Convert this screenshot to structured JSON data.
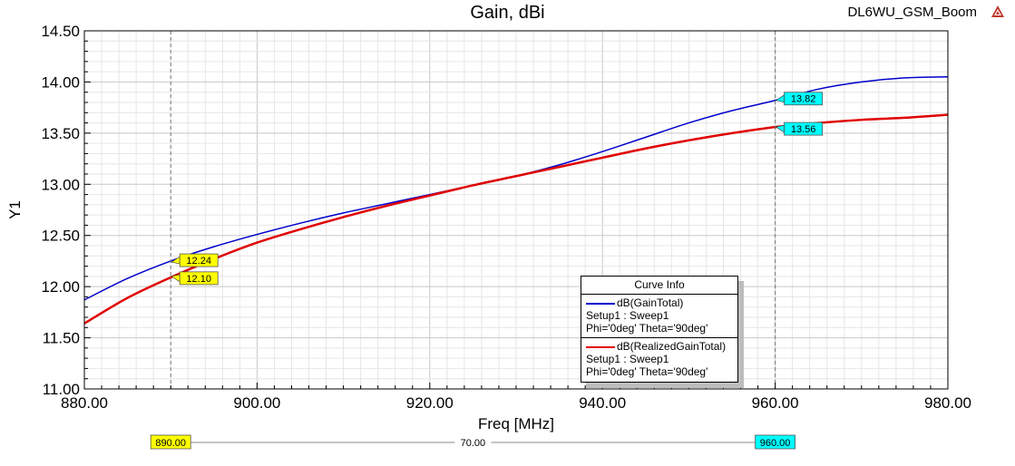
{
  "project": "DL6WU_GSM_Boom",
  "chart_data": {
    "type": "line",
    "title": "Gain, dBi",
    "xlabel": "Freq [MHz]",
    "ylabel": "Y1",
    "xlim": [
      880,
      980
    ],
    "ylim": [
      11.0,
      14.5
    ],
    "x_ticks": [
      "880.00",
      "900.00",
      "920.00",
      "940.00",
      "960.00",
      "980.00"
    ],
    "y_ticks": [
      "11.00",
      "11.50",
      "12.00",
      "12.50",
      "13.00",
      "13.50",
      "14.00",
      "14.50"
    ],
    "grid": true,
    "legend_title": "Curve Info",
    "series": [
      {
        "name": "dB(GainTotal)",
        "setup": "Setup1 : Sweep1",
        "condition": "Phi='0deg' Theta='90deg'",
        "color": "#0000cc",
        "x": [
          880,
          885,
          890,
          895,
          900,
          905,
          910,
          915,
          920,
          925,
          930,
          935,
          940,
          945,
          950,
          955,
          960,
          965,
          970,
          975,
          980
        ],
        "y": [
          11.87,
          12.08,
          12.25,
          12.39,
          12.51,
          12.62,
          12.72,
          12.81,
          12.9,
          12.99,
          13.08,
          13.19,
          13.32,
          13.46,
          13.6,
          13.72,
          13.82,
          13.93,
          14.0,
          14.04,
          14.05
        ]
      },
      {
        "name": "dB(RealizedGainTotal)",
        "setup": "Setup1 : Sweep1",
        "condition": "Phi='0deg' Theta='90deg'",
        "color": "#e00000",
        "x": [
          880,
          885,
          890,
          895,
          900,
          905,
          910,
          915,
          920,
          925,
          930,
          935,
          940,
          945,
          950,
          955,
          960,
          965,
          970,
          975,
          980
        ],
        "y": [
          11.64,
          11.89,
          12.09,
          12.27,
          12.43,
          12.56,
          12.68,
          12.79,
          12.89,
          12.99,
          13.08,
          13.17,
          13.26,
          13.35,
          13.43,
          13.5,
          13.56,
          13.6,
          13.63,
          13.65,
          13.68
        ]
      }
    ],
    "markers": [
      {
        "x": 890,
        "labels": [
          "12.24",
          "12.10"
        ],
        "values": [
          12.24,
          12.1
        ],
        "color": "#ffff00",
        "axis_label": "890.00"
      },
      {
        "x": 960,
        "labels": [
          "13.82",
          "13.56"
        ],
        "values": [
          13.82,
          13.56
        ],
        "color": "#00ffff",
        "axis_label": "960.00"
      }
    ],
    "delta_label": "70.00"
  }
}
